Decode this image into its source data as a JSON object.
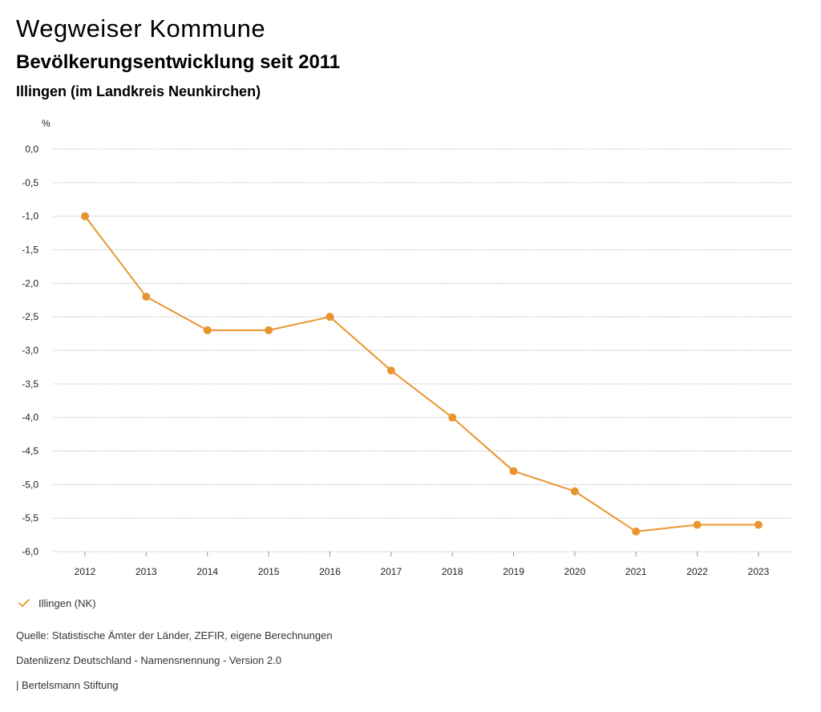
{
  "header": {
    "title": "Wegweiser Kommune",
    "subtitle": "Bevölkerungsentwicklung seit 2011",
    "region": "Illingen (im Landkreis Neunkirchen)"
  },
  "chart_data": {
    "type": "line",
    "title": "Bevölkerungsentwicklung seit 2011",
    "ylabel": "%",
    "xlabel": "",
    "ylim": [
      -6.0,
      0.0
    ],
    "yticks": [
      0.0,
      -0.5,
      -1.0,
      -1.5,
      -2.0,
      -2.5,
      -3.0,
      -3.5,
      -4.0,
      -4.5,
      -5.0,
      -5.5,
      -6.0
    ],
    "ytick_labels": [
      "0,0",
      "-0,5",
      "-1,0",
      "-1,5",
      "-2,0",
      "-2,5",
      "-3,0",
      "-3,5",
      "-4,0",
      "-4,5",
      "-5,0",
      "-5,5",
      "-6,0"
    ],
    "categories": [
      "2012",
      "2013",
      "2014",
      "2015",
      "2016",
      "2017",
      "2018",
      "2019",
      "2020",
      "2021",
      "2022",
      "2023"
    ],
    "series": [
      {
        "name": "Illingen (NK)",
        "color": "#e8952f",
        "values": [
          -1.0,
          -2.2,
          -2.7,
          -2.7,
          -2.5,
          -3.3,
          -4.0,
          -4.8,
          -5.1,
          -5.7,
          -5.6,
          -5.6
        ]
      }
    ],
    "grid": true,
    "legend": "bottom-left"
  },
  "legend": {
    "label": "Illingen (NK)",
    "color": "#e8952f"
  },
  "footer": {
    "source": "Quelle: Statistische Ämter der Länder, ZEFIR, eigene Berechnungen",
    "license": "Datenlizenz Deutschland - Namensnennung - Version 2.0",
    "publisher": "| Bertelsmann Stiftung"
  }
}
